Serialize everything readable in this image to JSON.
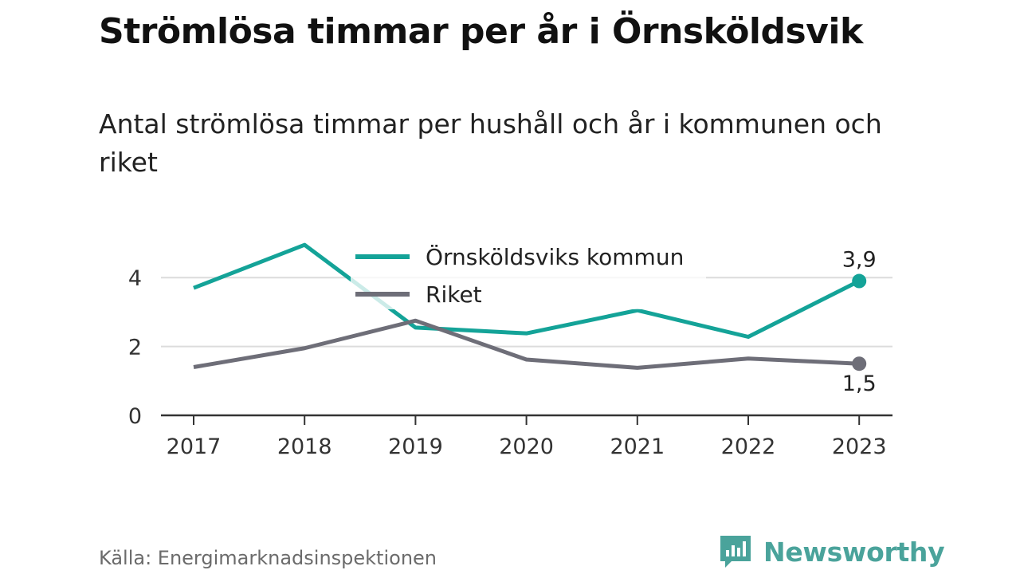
{
  "title": "Strömlösa timmar per år i Örnsköldsvik",
  "subtitle": "Antal strömlösa timmar per hushåll och år i kommunen och riket",
  "source": "Källa: Energimarknadsinspektionen",
  "brand": {
    "name": "Newsworthy",
    "color": "#4aa39b",
    "icon": "newsworthy-logo-icon"
  },
  "chart_data": {
    "type": "line",
    "x": [
      "2017",
      "2018",
      "2019",
      "2020",
      "2021",
      "2022",
      "2023"
    ],
    "y_ticks": [
      "0",
      "2",
      "4"
    ],
    "ylim": [
      0,
      5
    ],
    "grid": true,
    "legend_position": "top-center",
    "series": [
      {
        "name": "Örnsköldsviks kommun",
        "color": "#14a398",
        "values": [
          3.7,
          4.95,
          2.55,
          2.38,
          3.05,
          2.28,
          3.9
        ],
        "end_label": "3,9"
      },
      {
        "name": "Riket",
        "color": "#6e6e78",
        "values": [
          1.4,
          1.95,
          2.75,
          1.62,
          1.38,
          1.65,
          1.5
        ],
        "end_label": "1,5"
      }
    ]
  }
}
